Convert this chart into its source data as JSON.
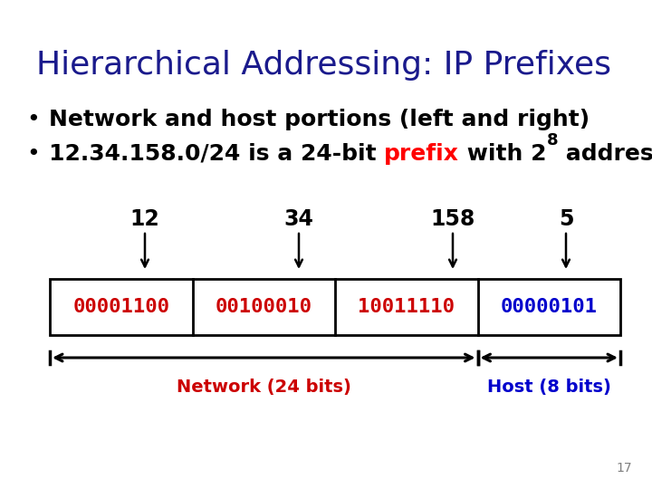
{
  "title": "Hierarchical Addressing: IP Prefixes",
  "title_color": "#1a1a8c",
  "title_fontsize": 26,
  "title_fontweight": "normal",
  "bullet1": "Network and host portions (left and right)",
  "bullet2_pre": "12.34.158.0/24 is a 24-bit ",
  "bullet2_prefix": "prefix",
  "bullet2_post": " with 2",
  "bullet2_exp": "8",
  "bullet2_end": " addresses",
  "bullet_fontsize": 18,
  "decimal_labels": [
    "12",
    "34",
    "158",
    "5"
  ],
  "decimal_fontsize": 17,
  "binary_segments": [
    "00001100",
    "00100010",
    "10011110",
    "00000101"
  ],
  "binary_colors": [
    "#cc0000",
    "#cc0000",
    "#cc0000",
    "#0000cc"
  ],
  "binary_fontsize": 16,
  "network_label": "Network (24 bits)",
  "host_label": "Host (8 bits)",
  "network_color": "#cc0000",
  "host_color": "#0000cc",
  "label_fontsize": 14,
  "page_number": "17",
  "background_color": "#ffffff"
}
